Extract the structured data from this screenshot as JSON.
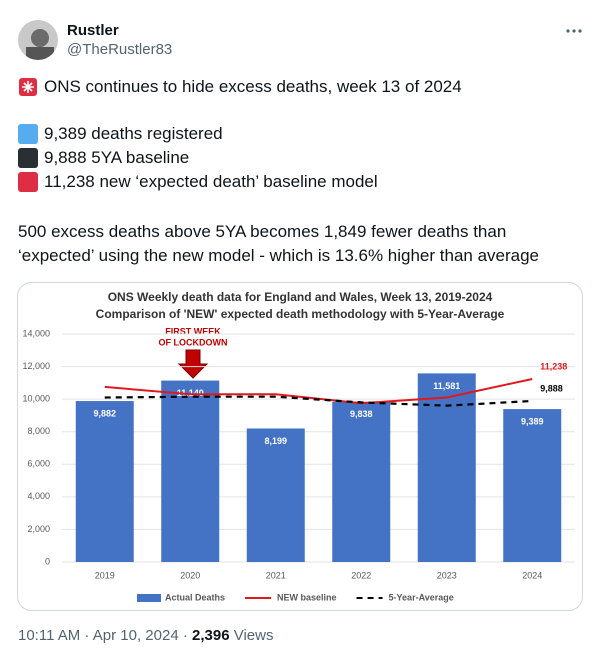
{
  "tweet": {
    "name": "Rustler",
    "handle": "@TheRustler83",
    "text_line": "ONS continues to hide excess deaths, week 13 of 2024",
    "items": [
      "9,389 deaths registered",
      "9,888 5YA baseline",
      "11,238 new ‘expected death’ baseline model"
    ],
    "paragraph": "500 excess deaths above 5YA becomes 1,849 fewer deaths than ‘expected’ using the new model - which is 13.6% higher than average",
    "footer": "10:11 AM · Apr 10, 2024 ·",
    "views": "2,396",
    "views_label": "Views"
  },
  "chart_data": {
    "type": "bar",
    "title": "ONS Weekly death data for England and Wales, Week 13, 2019-2024",
    "subtitle": "Comparison of 'NEW' expected death methodology with 5-Year-Average",
    "annotation": [
      "FIRST WEEK",
      "OF LOCKDOWN"
    ],
    "categories": [
      "2019",
      "2020",
      "2021",
      "2022",
      "2023",
      "2024"
    ],
    "series": [
      {
        "name": "Actual Deaths",
        "type": "bar",
        "color": "#4472c4",
        "values": [
          9882,
          11140,
          8199,
          9838,
          11581,
          9389
        ],
        "value_labels": [
          "9,882",
          "11,140",
          "8,199",
          "9,838",
          "11,581",
          "9,389"
        ]
      },
      {
        "name": "NEW baseline",
        "type": "line",
        "color": "#e0191e",
        "values": [
          10750,
          10300,
          10300,
          9750,
          10100,
          11238
        ],
        "value_labels": [
          null,
          null,
          null,
          null,
          null,
          "11,238"
        ]
      },
      {
        "name": "5-Year-Average",
        "type": "line",
        "color": "#000000",
        "dashed": true,
        "values": [
          10100,
          10150,
          10150,
          9800,
          9600,
          9888
        ],
        "value_labels": [
          null,
          null,
          null,
          null,
          null,
          "9,888"
        ]
      }
    ],
    "ylim": [
      0,
      14000
    ],
    "yticks": [
      0,
      {
        "value": 2000,
        "label": "2,000"
      },
      {
        "value": 4000,
        "label": "4,000"
      },
      {
        "value": 6000,
        "label": "6,000"
      },
      {
        "value": 8000,
        "label": "8,000"
      },
      {
        "value": 10000,
        "label": "10,000"
      },
      {
        "value": 12000,
        "label": "12,000"
      },
      {
        "value": 14000,
        "label": "14,000"
      }
    ],
    "grid": true,
    "legend": "bottom"
  }
}
